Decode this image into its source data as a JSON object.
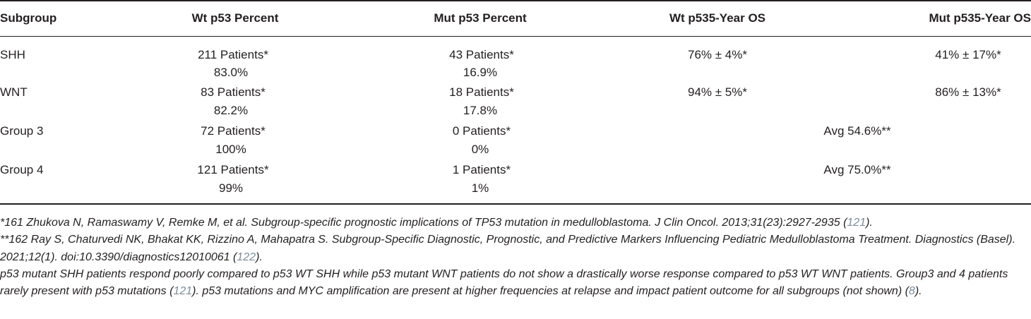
{
  "table": {
    "headers": [
      "Subgroup",
      "Wt p53 Percent",
      "Mut p53 Percent",
      "Wt p535-Year OS",
      "Mut p535-Year OS"
    ],
    "rows": [
      {
        "subgroup": "SHH",
        "wt_count": "211 Patients*",
        "wt_pct": "83.0%",
        "mut_count": "43 Patients*",
        "mut_pct": "16.9%",
        "wt_os": "76% ± 4%*",
        "mut_os": "41% ± 17%*"
      },
      {
        "subgroup": "WNT",
        "wt_count": "83 Patients*",
        "wt_pct": "82.2%",
        "mut_count": "18 Patients*",
        "mut_pct": "17.8%",
        "wt_os": "94% ± 5%*",
        "mut_os": "86% ± 13%*"
      },
      {
        "subgroup": "Group 3",
        "wt_count": "72 Patients*",
        "wt_pct": "100%",
        "mut_count": "0 Patients*",
        "mut_pct": "0%",
        "avg_os": "Avg 54.6%**"
      },
      {
        "subgroup": "Group 4",
        "wt_count": "121 Patients*",
        "wt_pct": "99%",
        "mut_count": "1 Patients*",
        "mut_pct": "1%",
        "avg_os": "Avg 75.0%**"
      }
    ]
  },
  "footnotes": {
    "fn1": {
      "text": "*161 Zhukova N, Ramaswamy V, Remke M, et al. Subgroup-specific prognostic implications of TP53 mutation in medulloblastoma. J Clin Oncol. 2013;31(23):2927-2935 (",
      "ref": "121",
      "end": ")."
    },
    "fn2": {
      "text": "**162 Ray S, Chaturvedi NK, Bhakat KK, Rizzino A, Mahapatra S. Subgroup-Specific Diagnostic, Prognostic, and Predictive Markers Influencing Pediatric Medulloblastoma Treatment. Diagnostics (Basel). 2021;12(1). doi:10.3390/diagnostics12010061 (",
      "ref": "122",
      "end": ")."
    },
    "fn3": {
      "a": "p53 mutant SHH patients respond poorly compared to p53 WT SHH while p53 mutant WNT patients do not show a drastically worse response compared to p53 WT WNT patients. Group3 and 4 patients rarely present with p53 mutations (",
      "ref1": "121",
      "b": "). p53 mutations and MYC amplification are present at higher frequencies at relapse and impact patient outcome for all subgroups (not shown) (",
      "ref2": "8",
      "c": ")."
    }
  },
  "colors": {
    "text": "#231f20",
    "ref_link": "#7d8c9a"
  }
}
